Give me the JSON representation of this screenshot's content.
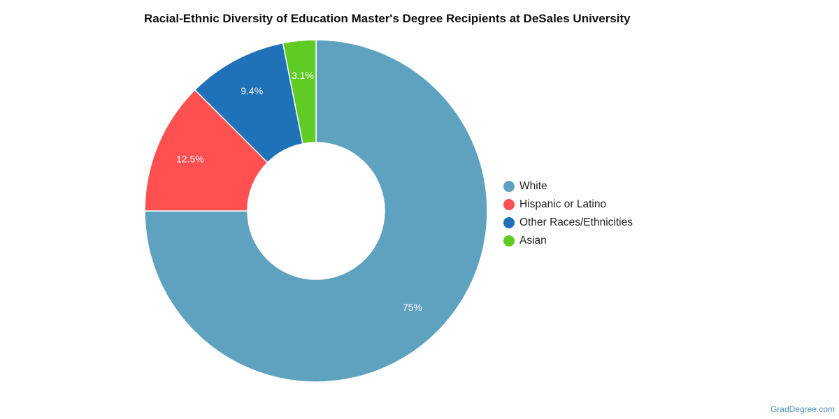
{
  "chart_data": {
    "type": "pie",
    "title": "Racial-Ethnic Diversity of Education Master's Degree Recipients at DeSales University",
    "legend_position": "right",
    "donut": true,
    "categories": [
      "White",
      "Hispanic or Latino",
      "Other Races/Ethnicities",
      "Asian"
    ],
    "values": [
      75,
      12.5,
      9.4,
      3.1
    ],
    "labels": [
      "75%",
      "12.5%",
      "9.4%",
      "3.1%"
    ],
    "colors": [
      "#5ea2bf",
      "#fe5050",
      "#1f71b8",
      "#5fcc23"
    ]
  },
  "footer": {
    "watermark": "GradDegree.com"
  }
}
